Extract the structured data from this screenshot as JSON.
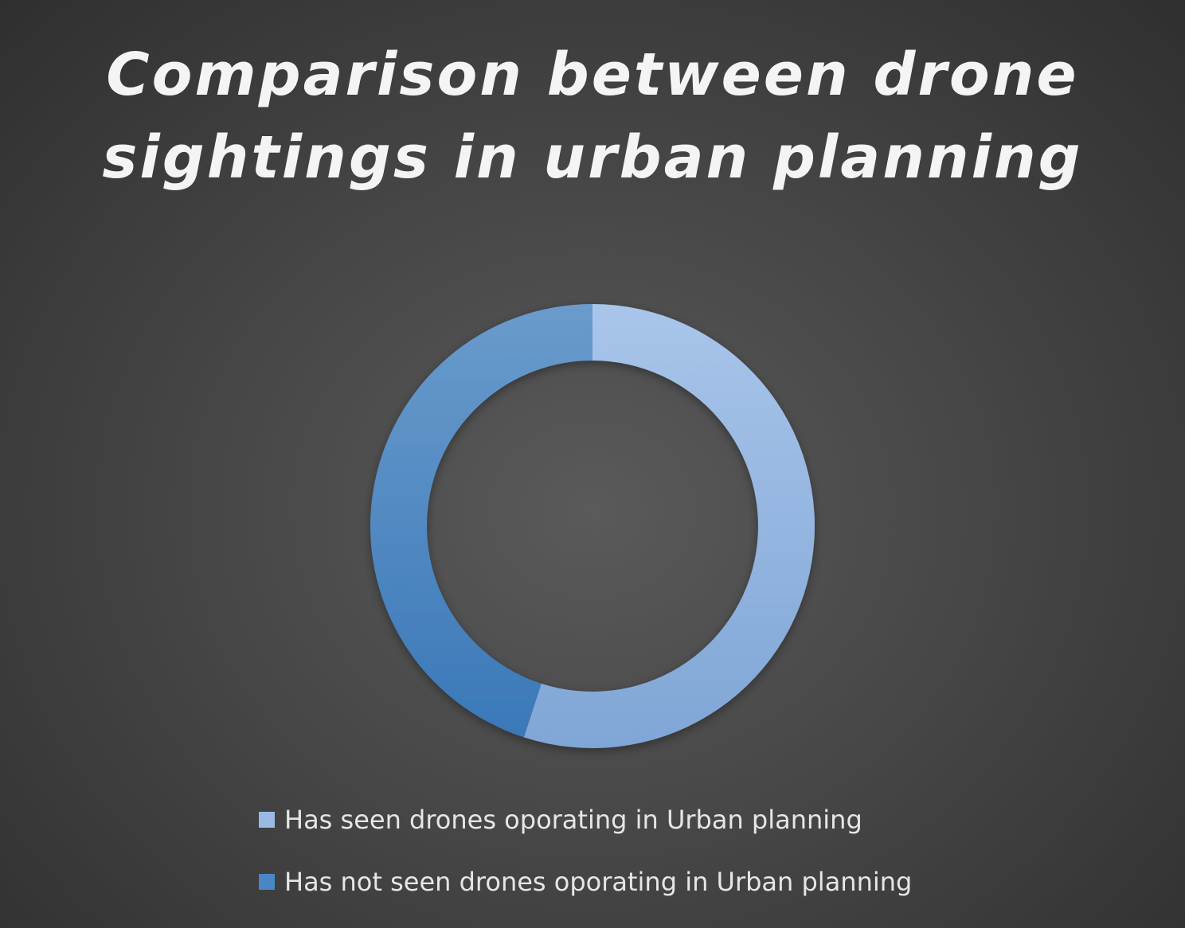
{
  "chart_data": {
    "type": "pie",
    "variant": "donut",
    "title": "Comparison between drone sightings in urban planning",
    "title_lines": [
      "Comparison between drone",
      "sightings in urban planning"
    ],
    "categories": [
      "Has seen drones oporating in Urban planning",
      "Has not seen drones oporating in Urban planning"
    ],
    "values": [
      55,
      45
    ],
    "colors": [
      "#9bbae3",
      "#4a86c4"
    ],
    "legend_position": "bottom",
    "data_labels": false
  },
  "background": "#474747"
}
